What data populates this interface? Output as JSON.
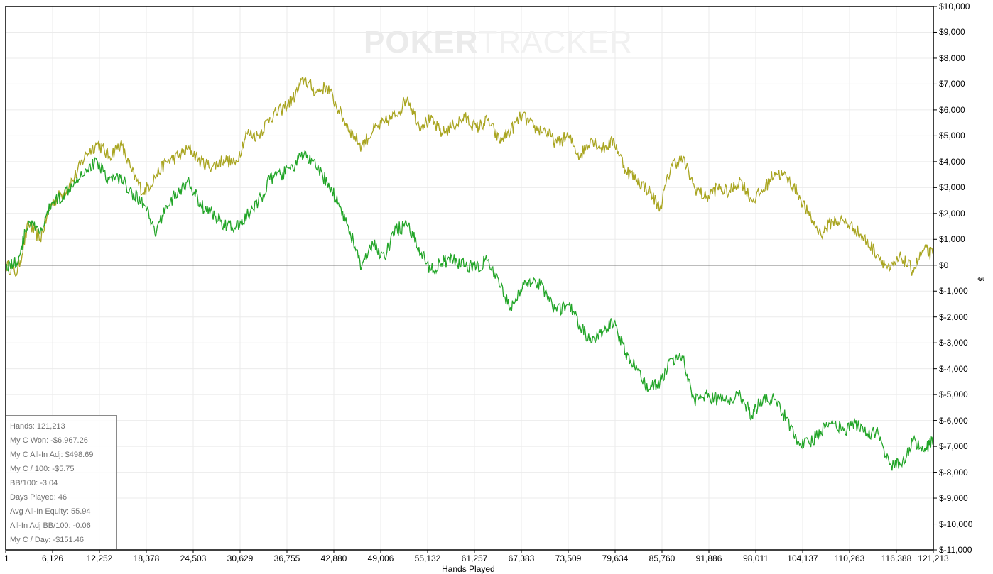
{
  "watermark": {
    "bold": "POKER",
    "light": "TRACKER"
  },
  "stats": {
    "hands": "Hands: 121,213",
    "won": "My C Won: -$6,967.26",
    "allin_adj": "My C All-In Adj: $498.69",
    "per100": "My C / 100: -$5.75",
    "bb100": "BB/100: -3.04",
    "days": "Days Played: 46",
    "equity": "Avg All-In Equity: 55.94",
    "adj_bb100": "All-In Adj BB/100: -0.06",
    "per_day": "My C / Day: -$151.46"
  },
  "axes": {
    "xlabel": "Hands Played",
    "ylabel": "$",
    "yticks": [
      "$10,000",
      "$9,000",
      "$8,000",
      "$7,000",
      "$6,000",
      "$5,000",
      "$4,000",
      "$3,000",
      "$2,000",
      "$1,000",
      "$0",
      "$-1,000",
      "$-2,000",
      "$-3,000",
      "$-4,000",
      "$-5,000",
      "$-6,000",
      "$-7,000",
      "$-8,000",
      "$-9,000",
      "$-10,000",
      "$-11,000"
    ],
    "xticks": [
      "1",
      "6,126",
      "12,252",
      "18,378",
      "24,503",
      "30,629",
      "36,755",
      "42,880",
      "49,006",
      "55,132",
      "61,257",
      "67,383",
      "73,509",
      "79,634",
      "85,760",
      "91,886",
      "98,011",
      "104,137",
      "110,263",
      "116,388",
      "121,213"
    ]
  },
  "colors": {
    "allin_adj": "#a9a521",
    "won": "#22a528",
    "grid": "#ebebeb",
    "axis": "#000000"
  },
  "chart_data": {
    "type": "line",
    "title": "",
    "xlabel": "Hands Played",
    "ylabel": "$",
    "xlim": [
      1,
      121213
    ],
    "ylim": [
      -11000,
      10000
    ],
    "grid": true,
    "legend": "none",
    "x": [
      1,
      1500,
      3000,
      4500,
      6000,
      7500,
      9000,
      10500,
      12000,
      13500,
      15000,
      16500,
      18000,
      19500,
      21000,
      22500,
      24000,
      25500,
      27000,
      28500,
      30000,
      31500,
      33000,
      34500,
      36000,
      37500,
      39000,
      40500,
      42000,
      43500,
      45000,
      46500,
      48000,
      49500,
      51000,
      52500,
      54000,
      55500,
      57000,
      58500,
      60000,
      61500,
      63000,
      64500,
      66000,
      67500,
      69000,
      70500,
      72000,
      73500,
      75000,
      76500,
      78000,
      79500,
      81000,
      82500,
      84000,
      85500,
      87000,
      88500,
      90000,
      91500,
      93000,
      94500,
      96000,
      97500,
      99000,
      100500,
      102000,
      103500,
      105000,
      106500,
      108000,
      109500,
      111000,
      112500,
      114000,
      115500,
      117000,
      118500,
      120000,
      121213
    ],
    "series": [
      {
        "name": "My C All-In Adj",
        "values": [
          0,
          -300,
          1600,
          1000,
          2400,
          2800,
          3400,
          4300,
          4700,
          4200,
          4700,
          3600,
          2800,
          3400,
          4000,
          4200,
          4500,
          4000,
          3800,
          4100,
          3900,
          5100,
          5000,
          5700,
          6000,
          6400,
          7200,
          6700,
          6900,
          6000,
          5200,
          4600,
          5200,
          5500,
          5800,
          6500,
          5400,
          5600,
          5100,
          5400,
          5700,
          5300,
          5600,
          4800,
          5200,
          5800,
          5300,
          5200,
          4700,
          5000,
          4200,
          4900,
          4500,
          4800,
          3700,
          3300,
          2900,
          2200,
          3900,
          4100,
          3000,
          2600,
          3000,
          2800,
          3300,
          2500,
          2900,
          3600,
          3400,
          2800,
          1900,
          1200,
          1700,
          1700,
          1400,
          900,
          400,
          -200,
          300,
          -200,
          600,
          400
        ]
      },
      {
        "name": "My C Won",
        "values": [
          0,
          100,
          1700,
          1200,
          2400,
          2700,
          3300,
          3700,
          4000,
          3300,
          3400,
          2800,
          2400,
          1200,
          2300,
          2800,
          3200,
          2300,
          2000,
          1600,
          1400,
          1900,
          2400,
          3300,
          3500,
          3800,
          4300,
          3800,
          3200,
          2400,
          1300,
          -100,
          800,
          300,
          1400,
          1500,
          700,
          -200,
          100,
          200,
          0,
          -100,
          200,
          -800,
          -1600,
          -900,
          -500,
          -1000,
          -1800,
          -1500,
          -2300,
          -3000,
          -2600,
          -2200,
          -3400,
          -4000,
          -4800,
          -4500,
          -3600,
          -3600,
          -5200,
          -5000,
          -5200,
          -5200,
          -5000,
          -5800,
          -5100,
          -5200,
          -5900,
          -6800,
          -6900,
          -6400,
          -6000,
          -6400,
          -6100,
          -6500,
          -6500,
          -7700,
          -7700,
          -6800,
          -7200,
          -6800
        ]
      }
    ]
  }
}
